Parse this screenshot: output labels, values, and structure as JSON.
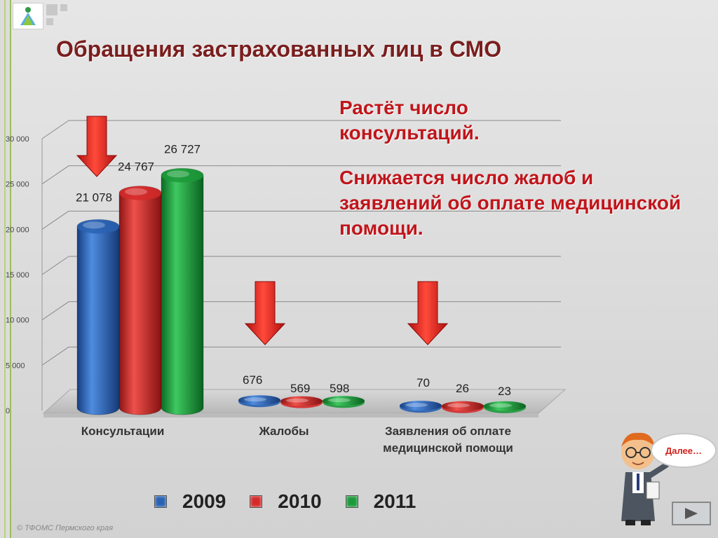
{
  "slide": {
    "title": "Обращения застрахованных лиц в СМО",
    "note1": "Растёт число консультаций.",
    "note2": "Снижается число жалоб и заявлений об оплате медицинской помощи.",
    "footer": "© ТФОМС Пермского края",
    "bubble_text": "Далее…",
    "next_icon": "play-triangle-icon"
  },
  "chart_data": {
    "type": "bar",
    "categories": [
      "Консультации",
      "Жалобы",
      "Заявления  об оплате медицинской помощи"
    ],
    "series": [
      {
        "name": "2009",
        "values": [
          21078,
          676,
          70
        ],
        "labels": [
          "21 078",
          "676",
          "70"
        ],
        "color": "#2a62b2"
      },
      {
        "name": "2010",
        "values": [
          24767,
          569,
          26
        ],
        "labels": [
          "24 767",
          "569",
          "26"
        ],
        "color": "#d42a2a"
      },
      {
        "name": "2011",
        "values": [
          26727,
          598,
          23
        ],
        "labels": [
          "26 727",
          "598",
          "23"
        ],
        "color": "#1c9a3a"
      }
    ],
    "yticks": [
      0,
      5000,
      10000,
      15000,
      20000,
      25000,
      30000
    ],
    "ytick_labels": [
      "0",
      "5 000",
      "10 000",
      "15 000",
      "20 000",
      "25 000",
      "30 000"
    ],
    "ylim": [
      0,
      30000
    ],
    "grid": true,
    "legend_position": "bottom",
    "arrows": [
      "down",
      "down",
      "down"
    ],
    "arrow_color": "#e02020"
  }
}
